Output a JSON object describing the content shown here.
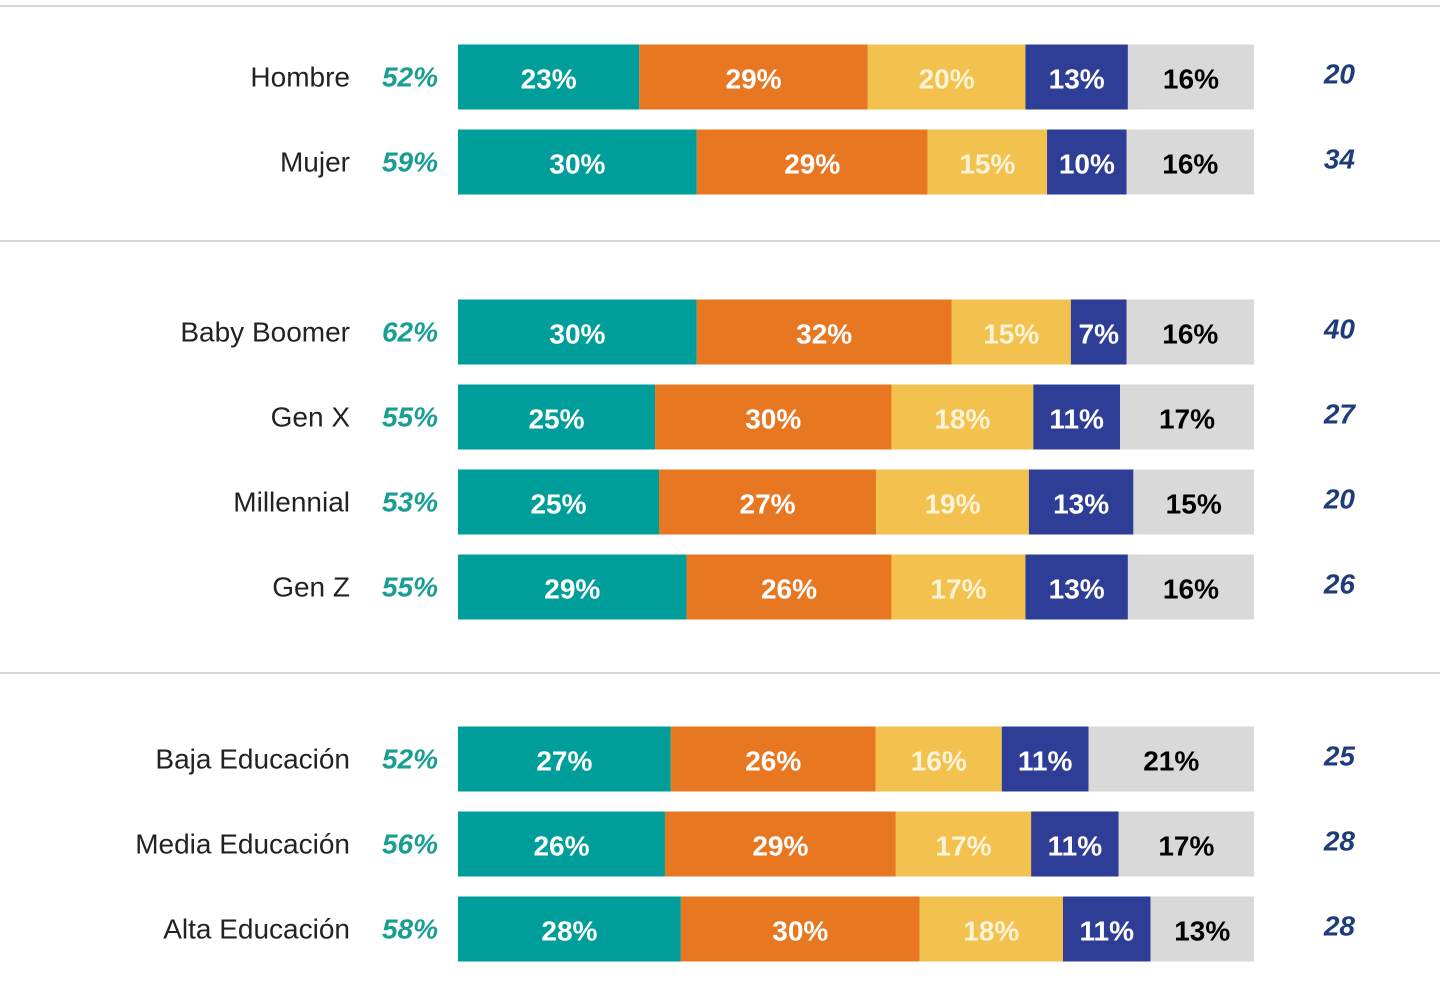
{
  "chart_data": {
    "type": "stacked-bar",
    "orientation": "horizontal",
    "categories": [
      "Hombre",
      "Mujer",
      "Baby Boomer",
      "Gen X",
      "Millennial",
      "Gen Z",
      "Baja Educación",
      "Media Educación",
      "Alta Educación"
    ],
    "series": [
      {
        "color": "#009e9a",
        "label_color": "#ffffff",
        "values": [
          23,
          30,
          30,
          25,
          25,
          29,
          27,
          26,
          28
        ],
        "value_labels": [
          "23%",
          "30%",
          "30%",
          "25%",
          "25%",
          "29%",
          "27%",
          "26%",
          "28%"
        ]
      },
      {
        "color": "#e87722",
        "label_color": "#ffffff",
        "values": [
          29,
          29,
          32,
          30,
          27,
          26,
          26,
          29,
          30
        ],
        "value_labels": [
          "29%",
          "29%",
          "32%",
          "30%",
          "27%",
          "26%",
          "26%",
          "29%",
          "30%"
        ]
      },
      {
        "color": "#f2c14e",
        "label_color": "#fdf3d6",
        "values": [
          20,
          15,
          15,
          18,
          19,
          17,
          16,
          17,
          18
        ],
        "value_labels": [
          "20%",
          "15%",
          "15%",
          "18%",
          "19%",
          "17%",
          "16%",
          "17%",
          "18%"
        ]
      },
      {
        "color": "#2e3e97",
        "label_color": "#ffffff",
        "values": [
          13,
          10,
          7,
          11,
          13,
          13,
          11,
          11,
          11
        ],
        "value_labels": [
          "13%",
          "10%",
          "7%",
          "11%",
          "13%",
          "13%",
          "11%",
          "11%",
          "11%"
        ]
      },
      {
        "color": "#d9d9d9",
        "label_color": "#000000",
        "values": [
          16,
          16,
          16,
          17,
          15,
          16,
          21,
          17,
          13
        ],
        "value_labels": [
          "16%",
          "16%",
          "16%",
          "17%",
          "15%",
          "16%",
          "21%",
          "17%",
          "13%"
        ]
      }
    ],
    "net_values": [
      52,
      59,
      62,
      55,
      53,
      55,
      52,
      56,
      58
    ],
    "net_labels": [
      "52%",
      "59%",
      "62%",
      "55%",
      "53%",
      "55%",
      "52%",
      "56%",
      "58%"
    ],
    "net_color": "#1a9e94",
    "scores": [
      20,
      34,
      40,
      27,
      20,
      26,
      25,
      28,
      28
    ],
    "score_color": "#1f3c7a"
  }
}
